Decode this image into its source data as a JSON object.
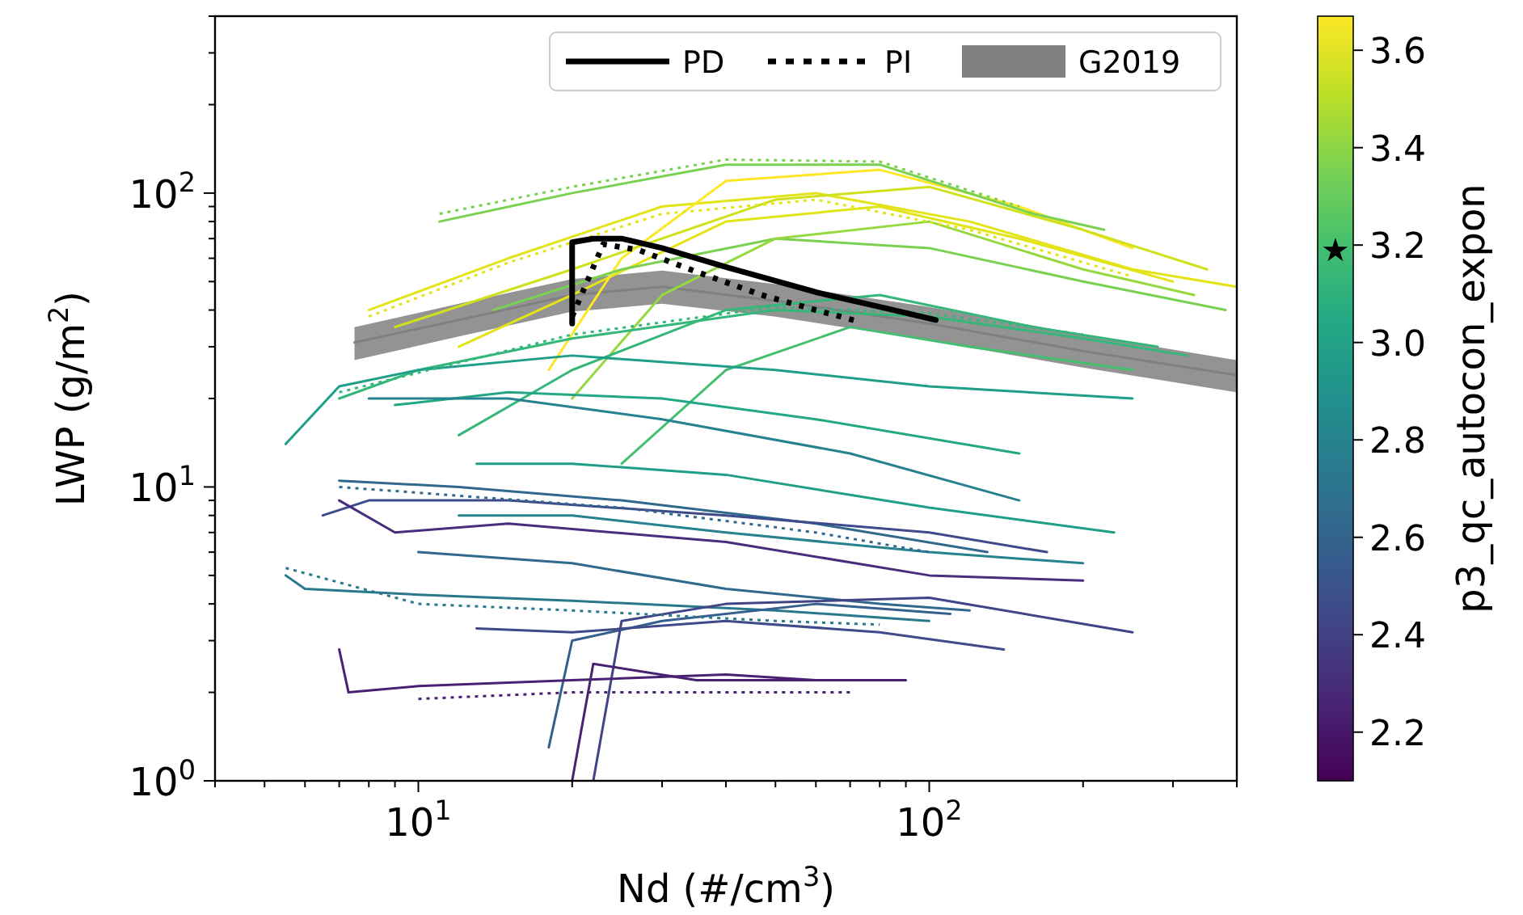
{
  "chart_data": {
    "type": "line",
    "xlabel": "Nd (#/cm$^{3}$)",
    "ylabel": "LWP (g/m$^{2}$)",
    "clabel": "p3_qc_autocon_expon",
    "log": "xy",
    "grid": false,
    "legend": "top right",
    "xlim": [
      4,
      400
    ],
    "ylim": [
      1,
      400
    ],
    "clim": [
      2.1,
      3.67
    ],
    "xticks": [
      {
        "value": 4,
        "label": null
      },
      {
        "value": 5,
        "label": null
      },
      {
        "value": 6,
        "label": null
      },
      {
        "value": 7,
        "label": null
      },
      {
        "value": 8,
        "label": null
      },
      {
        "value": 9,
        "label": null
      },
      {
        "value": 10,
        "label": "10$^{1}$"
      },
      {
        "value": 20,
        "label": null
      },
      {
        "value": 30,
        "label": null
      },
      {
        "value": 40,
        "label": null
      },
      {
        "value": 50,
        "label": null
      },
      {
        "value": 60,
        "label": null
      },
      {
        "value": 70,
        "label": null
      },
      {
        "value": 80,
        "label": null
      },
      {
        "value": 90,
        "label": null
      },
      {
        "value": 100,
        "label": "10$^{2}$"
      },
      {
        "value": 200,
        "label": null
      },
      {
        "value": 300,
        "label": null
      },
      {
        "value": 400,
        "label": null
      }
    ],
    "yticks": [
      {
        "value": 1,
        "label": "10$^{0}$"
      },
      {
        "value": 2,
        "label": null
      },
      {
        "value": 3,
        "label": null
      },
      {
        "value": 4,
        "label": null
      },
      {
        "value": 5,
        "label": null
      },
      {
        "value": 6,
        "label": null
      },
      {
        "value": 7,
        "label": null
      },
      {
        "value": 8,
        "label": null
      },
      {
        "value": 9,
        "label": null
      },
      {
        "value": 10,
        "label": "10$^{1}$"
      },
      {
        "value": 20,
        "label": null
      },
      {
        "value": 30,
        "label": null
      },
      {
        "value": 40,
        "label": null
      },
      {
        "value": 50,
        "label": null
      },
      {
        "value": 60,
        "label": null
      },
      {
        "value": 70,
        "label": null
      },
      {
        "value": 80,
        "label": null
      },
      {
        "value": 90,
        "label": null
      },
      {
        "value": 100,
        "label": "10$^{2}$"
      },
      {
        "value": 200,
        "label": null
      },
      {
        "value": 300,
        "label": null
      },
      {
        "value": 400,
        "label": null
      }
    ],
    "cticks": [
      {
        "value": 2.2,
        "label": "2.2"
      },
      {
        "value": 2.4,
        "label": "2.4"
      },
      {
        "value": 2.6,
        "label": "2.6"
      },
      {
        "value": 2.8,
        "label": "2.8"
      },
      {
        "value": 3,
        "label": "3.0"
      },
      {
        "value": 3.2,
        "label": "3.2"
      },
      {
        "value": 3.4,
        "label": "3.4"
      },
      {
        "value": 3.6,
        "label": "3.6"
      }
    ],
    "annotations": [
      "★"
    ],
    "series": [
      {
        "name": "G2019",
        "color": "#808080",
        "x": [
          7.5,
          12,
          20,
          30,
          50,
          100,
          200,
          400
        ],
        "values": [
          31,
          37,
          45,
          48,
          43,
          36,
          29,
          24
        ],
        "lower": [
          27,
          32.5,
          39.5,
          42,
          38,
          31.5,
          25.5,
          21
        ],
        "upper": [
          35,
          42,
          51,
          54.5,
          49,
          41,
          33,
          27
        ]
      },
      {
        "color": "#e2e418",
        "x": [
          8,
          15,
          30,
          60,
          120,
          250,
          400
        ],
        "values": [
          40,
          60,
          90,
          100,
          80,
          55,
          48
        ]
      },
      {
        "color": "#e2e418",
        "x": [
          12,
          20,
          40,
          80,
          150,
          300
        ],
        "values": [
          30,
          45,
          80,
          90,
          70,
          50
        ]
      },
      {
        "color": "#fde725",
        "x": [
          18,
          25,
          40,
          80,
          150,
          250
        ],
        "values": [
          25,
          60,
          110,
          120,
          90,
          65
        ]
      },
      {
        "color": "#d0e11c",
        "x": [
          9,
          20,
          50,
          100,
          200,
          350
        ],
        "values": [
          35,
          55,
          95,
          105,
          75,
          55
        ]
      },
      {
        "color": "#7ad151",
        "x": [
          11,
          20,
          40,
          80,
          160,
          220
        ],
        "values": [
          80,
          100,
          125,
          125,
          85,
          75
        ]
      },
      {
        "color": "#7ad151",
        "x": [
          14,
          25,
          50,
          100,
          200,
          380
        ],
        "values": [
          40,
          55,
          70,
          65,
          50,
          40
        ]
      },
      {
        "color": "#95d840",
        "x": [
          20,
          30,
          50,
          100,
          200,
          330
        ],
        "values": [
          20,
          45,
          70,
          80,
          55,
          45
        ]
      },
      {
        "color": "#35b779",
        "x": [
          7,
          10,
          20,
          50,
          100,
          200,
          320
        ],
        "values": [
          20,
          25,
          32,
          40,
          38,
          32,
          28
        ]
      },
      {
        "color": "#35b779",
        "x": [
          12,
          20,
          40,
          80,
          160,
          280
        ],
        "values": [
          15,
          25,
          40,
          45,
          35,
          30
        ]
      },
      {
        "color": "#44bf70",
        "x": [
          25,
          40,
          70,
          120,
          250
        ],
        "values": [
          12,
          25,
          35,
          30,
          25
        ]
      },
      {
        "color": "#1f9e89",
        "x": [
          5.5,
          7,
          10,
          20,
          50,
          100,
          250
        ],
        "values": [
          14,
          22,
          25,
          28,
          25,
          22,
          20
        ]
      },
      {
        "color": "#1f9e89",
        "x": [
          13,
          20,
          40,
          100,
          230
        ],
        "values": [
          12,
          12,
          11,
          8.5,
          7
        ]
      },
      {
        "color": "#22a884",
        "x": [
          9,
          15,
          30,
          60,
          150
        ],
        "values": [
          19,
          21,
          20,
          17,
          13
        ]
      },
      {
        "color": "#26828e",
        "x": [
          8,
          15,
          30,
          70,
          150
        ],
        "values": [
          20,
          20,
          17,
          13,
          9
        ]
      },
      {
        "color": "#26828e",
        "x": [
          12,
          20,
          40,
          100,
          200
        ],
        "values": [
          8,
          8,
          7,
          6,
          5.5
        ]
      },
      {
        "color": "#2a788e",
        "x": [
          5.5,
          6,
          10,
          20,
          50,
          100
        ],
        "values": [
          5,
          4.5,
          4.3,
          4.1,
          3.8,
          3.5
        ]
      },
      {
        "color": "#31688e",
        "x": [
          7,
          12,
          25,
          60,
          130
        ],
        "values": [
          10.5,
          10,
          9,
          7.5,
          6
        ]
      },
      {
        "color": "#31688e",
        "x": [
          10,
          20,
          40,
          80,
          120
        ],
        "values": [
          6,
          5.5,
          4.5,
          4,
          3.8
        ]
      },
      {
        "color": "#355f8d",
        "x": [
          18,
          20,
          30,
          60,
          110
        ],
        "values": [
          1.3,
          3,
          3.5,
          4,
          3.7
        ]
      },
      {
        "color": "#3e4a89",
        "x": [
          6.5,
          8,
          15,
          40,
          100,
          170
        ],
        "values": [
          8,
          9,
          9,
          8,
          7,
          6
        ]
      },
      {
        "color": "#3e4a89",
        "x": [
          13,
          20,
          40,
          80,
          140
        ],
        "values": [
          3.3,
          3.2,
          3.5,
          3.2,
          2.8
        ]
      },
      {
        "color": "#414487",
        "x": [
          22,
          25,
          40,
          100,
          250
        ],
        "values": [
          1,
          3.5,
          4,
          4.2,
          3.2
        ]
      },
      {
        "color": "#482173",
        "x": [
          7,
          7.3,
          10,
          20,
          40,
          60
        ],
        "values": [
          2.8,
          2,
          2.1,
          2.2,
          2.3,
          2.2
        ]
      },
      {
        "color": "#472d7b",
        "x": [
          7,
          9,
          15,
          40,
          100,
          200
        ],
        "values": [
          9,
          7,
          7.5,
          6.5,
          5,
          4.8
        ]
      },
      {
        "color": "#482173",
        "x": [
          20,
          22,
          35,
          90
        ],
        "values": [
          1,
          2.5,
          2.2,
          2.2
        ]
      },
      {
        "color": "#e2e418",
        "line_style": "dotted",
        "x": [
          8,
          15,
          30,
          60,
          120,
          250
        ],
        "values": [
          38,
          58,
          85,
          95,
          75,
          52
        ]
      },
      {
        "color": "#35b779",
        "line_style": "dotted",
        "x": [
          7,
          20,
          50,
          100,
          200
        ],
        "values": [
          21,
          33,
          41,
          39,
          33
        ]
      },
      {
        "color": "#2a788e",
        "line_style": "dotted",
        "x": [
          5.5,
          10,
          20,
          50,
          80
        ],
        "values": [
          5.3,
          4,
          3.8,
          3.5,
          3.4
        ]
      },
      {
        "color": "#482173",
        "line_style": "dotted",
        "x": [
          10,
          20,
          40,
          70
        ],
        "values": [
          1.9,
          2,
          2,
          2
        ]
      },
      {
        "color": "#31688e",
        "line_style": "dotted",
        "x": [
          7,
          25,
          60,
          100
        ],
        "values": [
          10,
          8.5,
          7,
          6
        ]
      },
      {
        "color": "#7ad151",
        "line_style": "dotted",
        "x": [
          11,
          20,
          40,
          80,
          150
        ],
        "values": [
          85,
          105,
          130,
          128,
          90
        ]
      },
      {
        "name": "PD",
        "color": "#000000",
        "x": [
          20,
          20,
          22,
          25,
          30,
          40,
          60,
          80,
          103
        ],
        "values": [
          36,
          68,
          70,
          70,
          65,
          56,
          46,
          41,
          37
        ]
      },
      {
        "name": "PI",
        "color": "#000000",
        "line_style": "dotted",
        "x": [
          20,
          23,
          27,
          35,
          47,
          60,
          73
        ],
        "values": [
          38,
          67,
          64,
          54,
          45,
          40,
          36.5
        ]
      }
    ]
  }
}
